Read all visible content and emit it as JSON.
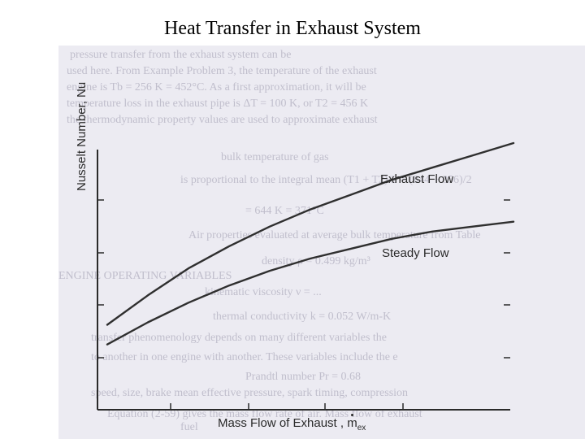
{
  "slide": {
    "title": "Heat Transfer in Exhaust System"
  },
  "background_text": [
    "pressure transfer from the exhaust system can be",
    "used here. From Example Problem 3, the temperature of the exhaust",
    "engine is Tb = 256 K = 452°C. As a first approximation, it will be",
    "temperature loss in the exhaust pipe is ΔT = 100 K, or T2 = 456 K",
    "the thermodynamic property values are used to approximate exhaust",
    "bulk temperature of gas",
    "is proportional to the integral mean   (T1 + T2)/2 = (844 + 856)/2",
    "= 644 K = 371°C",
    "Air properties evaluated at average bulk temperature from Table",
    "density     ρ = 0.499 kg/m³",
    "ENGINE OPERATING VARIABLES",
    "kinematic viscosity     ν = ...",
    "thermal conductivity     k = 0.052 W/m-K",
    "transfer phenomenology depends on many different variables the",
    "to another in one engine with another. These variables include the e",
    "Prandtl number     Pr = 0.68",
    "speed, size, brake mean effective pressure, spark timing, compression",
    "Equation (2-59) gives the mass flow rate of air. Mass flow of exhaust",
    "fuel"
  ],
  "chart_data": {
    "type": "line",
    "title": "",
    "xlabel": "Mass Flow of Exhaust , m",
    "xlabel_subscript": "ex",
    "ylabel": "Nusselt Number, Nu",
    "x_ticks_labeled": false,
    "y_ticks_labeled": false,
    "xlim": [
      0,
      1
    ],
    "ylim": [
      0,
      1
    ],
    "grid": false,
    "legend": "none",
    "series": [
      {
        "name": "Exhaust Flow",
        "color": "#2f2f2f",
        "x": [
          0.0,
          0.1,
          0.2,
          0.3,
          0.4,
          0.5,
          0.6,
          0.7,
          0.8,
          0.9,
          1.0
        ],
        "y": [
          0.24,
          0.36,
          0.47,
          0.56,
          0.64,
          0.71,
          0.77,
          0.83,
          0.88,
          0.93,
          0.98
        ]
      },
      {
        "name": "Steady Flow",
        "color": "#2f2f2f",
        "x": [
          0.0,
          0.1,
          0.2,
          0.3,
          0.4,
          0.5,
          0.6,
          0.7,
          0.8,
          0.9,
          1.0
        ],
        "y": [
          0.16,
          0.25,
          0.33,
          0.4,
          0.46,
          0.51,
          0.55,
          0.59,
          0.62,
          0.64,
          0.66
        ]
      }
    ]
  },
  "colors": {
    "axis": "#2a2a2a",
    "scan_background": "#ecebf2",
    "bleed_text": "#b9b7c6"
  }
}
